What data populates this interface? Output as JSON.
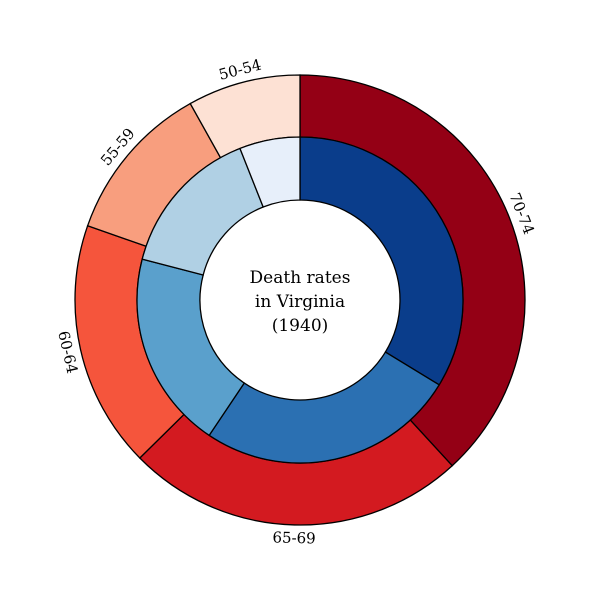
{
  "chart_data": {
    "type": "pie",
    "subtype": "nested-donut",
    "center_title": [
      "Death rates",
      "in Virginia",
      "(1940)"
    ],
    "start_angle": "top",
    "direction": "clockwise",
    "outer": {
      "categories": [
        "70-74",
        "65-69",
        "60-64",
        "55-59",
        "50-54"
      ],
      "values": [
        170.0,
        108.8,
        79.0,
        51.4,
        36.1
      ],
      "colors": [
        "#940015",
        "#d31a20",
        "#f5553c",
        "#f89e7e",
        "#fde1d4"
      ]
    },
    "inner": {
      "values": [
        50.0,
        38.1,
        29.1,
        22.2,
        8.9
      ],
      "colors": [
        "#0a3d8b",
        "#2b70b2",
        "#5aa0cc",
        "#b0d0e4",
        "#e7effa"
      ]
    }
  }
}
